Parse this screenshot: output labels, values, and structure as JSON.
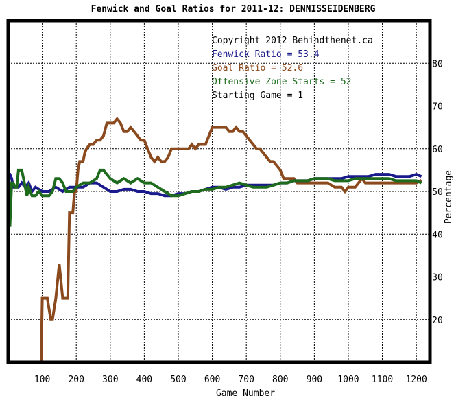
{
  "chart_data": {
    "type": "line",
    "title": "Fenwick and Goal Ratios for 2011-12: DENNISSEIDENBERG",
    "xlabel": "Game Number",
    "ylabel": "Percentage",
    "xlim": [
      0,
      1240
    ],
    "ylim": [
      10,
      90
    ],
    "xticks": [
      100,
      200,
      300,
      400,
      500,
      600,
      700,
      800,
      900,
      1000,
      1100,
      1200
    ],
    "yticks": [
      20,
      30,
      40,
      50,
      60,
      70,
      80
    ],
    "grid": true,
    "annotations": [
      {
        "text": "Copyright 2012 Behindthenet.ca",
        "color": "#000000"
      },
      {
        "text": "Fenwick Ratio = 53.4",
        "color": "#1a1a8c"
      },
      {
        "text": "Goal Ratio = 52.6",
        "color": "#8b4a1e"
      },
      {
        "text": "Offensive Zone Starts = 52",
        "color": "#1e6b1e"
      },
      {
        "text": "Starting Game = 1",
        "color": "#000000"
      }
    ],
    "series": [
      {
        "name": "Fenwick Ratio",
        "color": "#1a1a8c",
        "x": [
          0,
          2,
          5,
          10,
          15,
          20,
          30,
          40,
          50,
          60,
          70,
          80,
          100,
          120,
          140,
          160,
          180,
          200,
          220,
          240,
          260,
          280,
          300,
          320,
          340,
          360,
          380,
          400,
          420,
          440,
          460,
          480,
          500,
          520,
          540,
          560,
          580,
          600,
          620,
          640,
          660,
          680,
          700,
          720,
          740,
          760,
          780,
          800,
          820,
          840,
          860,
          880,
          900,
          920,
          940,
          960,
          980,
          1000,
          1020,
          1040,
          1060,
          1080,
          1100,
          1120,
          1140,
          1160,
          1180,
          1200,
          1215
        ],
        "y": [
          40,
          54,
          54,
          53,
          51,
          51,
          51,
          52,
          51,
          52,
          50,
          51,
          50,
          50,
          51,
          50,
          51,
          51,
          51,
          52,
          52,
          51,
          50,
          50,
          50.5,
          50.5,
          50,
          50,
          49.5,
          49.5,
          49,
          49,
          49.5,
          49.5,
          50,
          50,
          50.5,
          51,
          51,
          50.5,
          51,
          51,
          51.5,
          51.5,
          51.5,
          51.5,
          51.5,
          52,
          52,
          52.5,
          52.5,
          52.5,
          53,
          53,
          53,
          53,
          53,
          53.5,
          53.5,
          53.5,
          53.5,
          54,
          54,
          54,
          53.5,
          53.5,
          53.5,
          54,
          53.5
        ]
      },
      {
        "name": "Goal Ratio",
        "color": "#8b4a1e",
        "x": [
          97,
          100,
          105,
          115,
          125,
          130,
          140,
          150,
          160,
          170,
          175,
          180,
          190,
          195,
          200,
          205,
          210,
          220,
          225,
          230,
          240,
          250,
          260,
          270,
          280,
          290,
          300,
          310,
          320,
          330,
          340,
          350,
          360,
          370,
          380,
          390,
          400,
          410,
          420,
          430,
          440,
          450,
          460,
          470,
          480,
          490,
          500,
          510,
          520,
          530,
          540,
          550,
          560,
          570,
          580,
          590,
          600,
          610,
          620,
          630,
          640,
          650,
          660,
          670,
          680,
          690,
          700,
          710,
          720,
          730,
          740,
          750,
          760,
          770,
          780,
          790,
          800,
          810,
          820,
          830,
          840,
          850,
          860,
          880,
          900,
          920,
          940,
          960,
          970,
          980,
          990,
          1000,
          1010,
          1020,
          1030,
          1040,
          1050,
          1060,
          1080,
          1100,
          1120,
          1140,
          1160,
          1180,
          1200,
          1215
        ],
        "y": [
          10,
          25,
          25,
          25,
          20,
          20,
          25,
          33,
          25,
          25,
          25,
          45,
          45,
          50,
          50,
          55,
          57,
          57,
          59,
          60,
          61,
          61,
          62,
          62,
          63,
          66,
          66,
          66,
          67,
          66,
          64,
          64,
          65,
          64,
          63,
          62,
          62,
          60,
          58,
          57,
          58,
          57,
          57,
          58,
          60,
          60,
          60,
          60,
          60,
          60,
          61,
          60,
          61,
          61,
          61,
          63,
          65,
          65,
          65,
          65,
          65,
          64,
          64,
          65,
          64,
          64,
          63,
          62,
          61,
          60,
          60,
          59,
          58,
          57,
          57,
          56,
          55,
          53,
          53,
          53,
          53,
          52,
          52,
          52,
          52,
          52,
          52,
          51,
          51,
          51,
          50,
          51,
          51,
          51,
          52,
          53,
          52,
          52,
          52,
          52,
          52,
          52,
          52,
          52,
          52,
          52.6
        ]
      },
      {
        "name": "Offensive Zone Starts",
        "color": "#1e6b1e",
        "x": [
          0,
          5,
          10,
          15,
          20,
          25,
          30,
          35,
          40,
          50,
          55,
          60,
          65,
          70,
          80,
          90,
          100,
          110,
          120,
          130,
          140,
          150,
          160,
          170,
          180,
          190,
          200,
          220,
          240,
          260,
          270,
          280,
          290,
          300,
          320,
          340,
          360,
          380,
          400,
          420,
          440,
          460,
          480,
          500,
          520,
          540,
          560,
          580,
          600,
          620,
          640,
          660,
          680,
          700,
          720,
          740,
          760,
          780,
          800,
          820,
          840,
          860,
          880,
          900,
          920,
          940,
          960,
          980,
          1000,
          1020,
          1040,
          1060,
          1080,
          1100,
          1120,
          1140,
          1160,
          1180,
          1200,
          1215
        ],
        "y": [
          42,
          42,
          52,
          52,
          51,
          51,
          55,
          55,
          55,
          51,
          49,
          51,
          50,
          49,
          49,
          50,
          49,
          49,
          49,
          50,
          53,
          53,
          52,
          50,
          50,
          50,
          51,
          52,
          52,
          53,
          55,
          55,
          54,
          53,
          52,
          53,
          52,
          53,
          52,
          52,
          51,
          50,
          49,
          49,
          49.5,
          50,
          50,
          50.5,
          50.5,
          51,
          51,
          51.5,
          52,
          51.5,
          51,
          51,
          51,
          51.5,
          52,
          52,
          52.5,
          52.5,
          52.5,
          53,
          53,
          53,
          52.5,
          52.5,
          52.5,
          53,
          53,
          53,
          53,
          53,
          53,
          52.5,
          52.5,
          52.5,
          52.5,
          52
        ]
      }
    ]
  }
}
